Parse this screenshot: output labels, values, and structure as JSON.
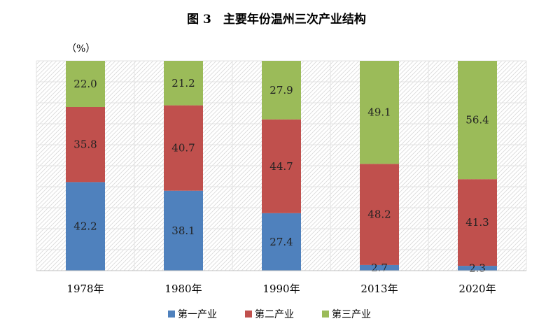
{
  "chart_data": {
    "type": "bar",
    "stacked": true,
    "title": "图 3　主要年份温州三次产业结构",
    "unit_label": "（%）",
    "categories": [
      "1978年",
      "1980年",
      "1990年",
      "2013年",
      "2020年"
    ],
    "series": [
      {
        "name": "第一产业",
        "color": "#4f81bd",
        "values": [
          42.2,
          38.1,
          27.4,
          2.7,
          2.3
        ],
        "labels": [
          "42.2",
          "38.1",
          "27.4",
          "2.7",
          "2.3"
        ]
      },
      {
        "name": "第二产业",
        "color": "#c0504d",
        "values": [
          35.8,
          40.7,
          44.7,
          48.2,
          41.3
        ],
        "labels": [
          "35.8",
          "40.7",
          "44.7",
          "48.2",
          "41.3"
        ]
      },
      {
        "name": "第三产业",
        "color": "#9bbb59",
        "values": [
          22.0,
          21.2,
          27.9,
          49.1,
          56.4
        ],
        "labels": [
          "22.0",
          "21.2",
          "27.9",
          "49.1",
          "56.4"
        ]
      }
    ],
    "ylim": [
      0,
      100
    ],
    "grid": true,
    "legend_position": "bottom"
  }
}
